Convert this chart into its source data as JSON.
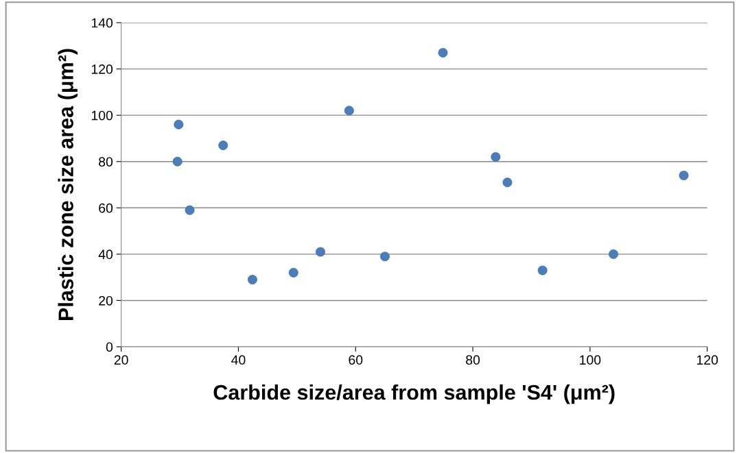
{
  "chart_data": {
    "type": "scatter",
    "xlabel": "Carbide size/area from sample 'S4' (μm²)",
    "ylabel": "Plastic zone size area (μm²)",
    "x": [
      29.8,
      29.6,
      31.7,
      37.4,
      42.4,
      49.4,
      54,
      58.9,
      65,
      74.9,
      83.9,
      85.9,
      91.9,
      104,
      116
    ],
    "values": [
      96,
      80,
      59,
      87,
      29,
      32,
      41,
      102,
      39,
      127,
      82,
      71,
      33,
      40,
      74
    ],
    "color": "#4a7ebb",
    "marker": "circle",
    "xlim": [
      20,
      120
    ],
    "xticks": [
      20,
      40,
      60,
      80,
      100,
      120
    ],
    "ylim": [
      0,
      140
    ],
    "yticks": [
      0,
      20,
      40,
      60,
      80,
      100,
      120,
      140
    ],
    "grid": "y",
    "legend": false
  }
}
